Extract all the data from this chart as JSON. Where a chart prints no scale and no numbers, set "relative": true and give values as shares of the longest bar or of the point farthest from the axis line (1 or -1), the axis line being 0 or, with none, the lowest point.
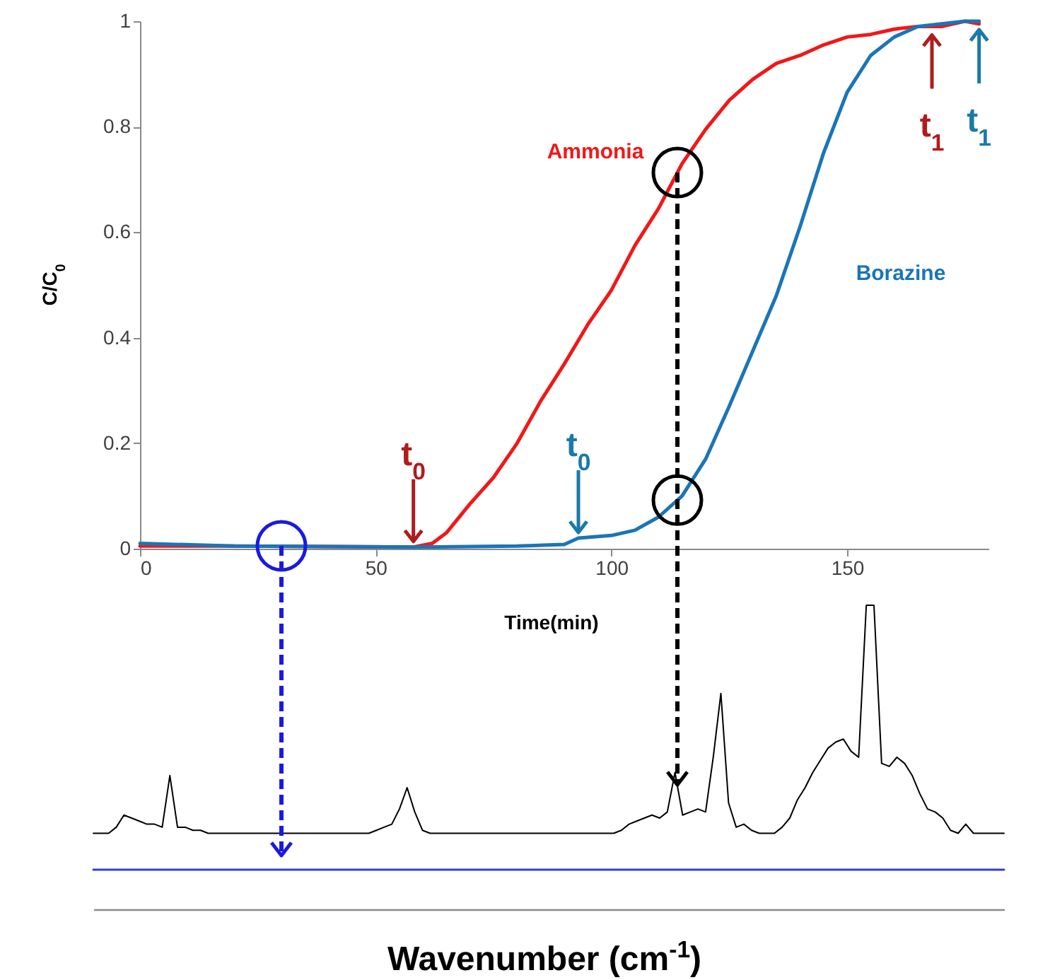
{
  "chart_data": [
    {
      "type": "line",
      "xlabel": "Time(min)",
      "ylabel": "C/C$_{0}$",
      "xlim": [
        0,
        180
      ],
      "xticks": [
        0,
        50,
        100,
        150
      ],
      "ylim": [
        0,
        1
      ],
      "yticks": [
        0,
        0.2,
        0.4,
        0.6,
        0.8,
        1
      ],
      "series": [
        {
          "name": "Ammonia",
          "color": "#f01818",
          "x": [
            0,
            20,
            40,
            58,
            62,
            65,
            70,
            75,
            80,
            85,
            90,
            95,
            100,
            105,
            110,
            115,
            120,
            125,
            130,
            135,
            140,
            145,
            150,
            155,
            160,
            165,
            170,
            175,
            178
          ],
          "values": [
            0.005,
            0.005,
            0.004,
            0.003,
            0.01,
            0.03,
            0.085,
            0.135,
            0.2,
            0.28,
            0.35,
            0.425,
            0.49,
            0.575,
            0.645,
            0.73,
            0.795,
            0.85,
            0.89,
            0.92,
            0.935,
            0.955,
            0.97,
            0.975,
            0.985,
            0.99,
            0.99,
            1,
            0.995
          ]
        },
        {
          "name": "Borazine",
          "color": "#1a75b8",
          "x": [
            0,
            20,
            40,
            60,
            80,
            90,
            93,
            100,
            105,
            110,
            115,
            120,
            125,
            130,
            135,
            140,
            145,
            150,
            155,
            160,
            165,
            170,
            175,
            178
          ],
          "values": [
            0.01,
            0.005,
            0.004,
            0.003,
            0.005,
            0.008,
            0.02,
            0.025,
            0.035,
            0.06,
            0.1,
            0.17,
            0.27,
            0.375,
            0.48,
            0.61,
            0.75,
            0.865,
            0.935,
            0.97,
            0.99,
            0.995,
            1,
            1
          ]
        }
      ],
      "annotations": [
        {
          "text": "t$_{0}$",
          "x": 58,
          "y": 0.003
        },
        {
          "text": "t$_{0}$",
          "x": 93,
          "y": 0.02
        },
        {
          "text": "t$_{1}$",
          "x": 168,
          "y": 0.99
        },
        {
          "text": "t$_{1}$",
          "x": 178,
          "y": 1
        }
      ],
      "ref_lines": [
        {
          "axis": "x",
          "value": 114,
          "color": "#000000",
          "line_style": "dashed"
        }
      ]
    },
    {
      "type": "line",
      "relative": true,
      "tick_labels": false,
      "xlabel": "Wavenumber (cm$^{-1}$)",
      "categories": [
        null,
        null,
        null,
        null,
        null,
        null,
        null,
        null,
        null,
        null,
        null,
        null,
        null,
        null,
        null,
        null,
        null,
        null,
        null,
        null,
        null,
        null,
        null,
        null,
        null,
        null,
        null,
        null,
        null,
        null,
        null,
        null,
        null,
        null,
        null,
        null,
        null,
        null,
        null,
        null,
        null,
        null,
        null,
        null,
        null,
        null,
        null,
        null,
        null,
        null,
        null,
        null,
        null,
        null,
        null,
        null,
        null,
        null,
        null,
        null,
        null,
        null,
        null,
        null,
        null,
        null,
        null,
        null,
        null,
        null,
        null,
        null,
        null,
        null,
        null,
        null,
        null,
        null,
        null,
        null,
        null,
        null,
        null,
        null,
        null,
        null,
        null,
        null,
        null,
        null,
        null,
        null,
        null,
        null,
        null,
        null,
        null,
        null,
        null,
        null,
        null,
        null,
        null,
        null,
        null,
        null,
        null,
        null,
        null,
        null,
        null,
        null,
        null,
        null,
        null,
        null,
        null,
        null,
        null,
        null
      ],
      "series": [
        {
          "color": "#000000",
          "values": [
            0.25,
            0.25,
            0.25,
            0.27,
            0.31,
            0.3,
            0.29,
            0.28,
            0.28,
            0.27,
            0.44,
            0.27,
            0.27,
            0.26,
            0.26,
            0.25,
            0.25,
            0.25,
            0.25,
            0.25,
            0.25,
            0.25,
            0.25,
            0.25,
            0.25,
            0.25,
            0.25,
            0.25,
            0.25,
            0.25,
            0.25,
            0.25,
            0.25,
            0.25,
            0.25,
            0.25,
            0.25,
            0.26,
            0.27,
            0.28,
            0.33,
            0.4,
            0.32,
            0.26,
            0.25,
            0.25,
            0.25,
            0.25,
            0.25,
            0.25,
            0.25,
            0.25,
            0.25,
            0.25,
            0.25,
            0.25,
            0.25,
            0.25,
            0.25,
            0.25,
            0.25,
            0.25,
            0.25,
            0.25,
            0.25,
            0.25,
            0.25,
            0.25,
            0.25,
            0.26,
            0.28,
            0.29,
            0.3,
            0.31,
            0.3,
            0.32,
            0.45,
            0.31,
            0.32,
            0.33,
            0.32,
            0.5,
            0.71,
            0.35,
            0.27,
            0.28,
            0.26,
            0.25,
            0.25,
            0.25,
            0.27,
            0.3,
            0.36,
            0.4,
            0.45,
            0.49,
            0.53,
            0.55,
            0.56,
            0.52,
            0.5,
            1,
            1,
            0.48,
            0.47,
            0.5,
            0.48,
            0.44,
            0.38,
            0.33,
            0.32,
            0.3,
            0.26,
            0.25,
            0.28,
            0.25,
            0.25,
            0.25,
            0.25,
            0.25
          ]
        },
        {
          "color": "#3040d0",
          "values": [
            0.13,
            0.13,
            0.13,
            0.13,
            0.13,
            0.13,
            0.13,
            0.13,
            0.13,
            0.13,
            0.13,
            0.13,
            0.13,
            0.13,
            0.13,
            0.13,
            0.13,
            0.13,
            0.13,
            0.13,
            0.13,
            0.13,
            0.13,
            0.13,
            0.13,
            0.13,
            0.13,
            0.13,
            0.13,
            0.13,
            0.13,
            0.13,
            0.13,
            0.13,
            0.13,
            0.13,
            0.13,
            0.13,
            0.13,
            0.13,
            0.13,
            0.13,
            0.13,
            0.13,
            0.13,
            0.13,
            0.13,
            0.13,
            0.13,
            0.13,
            0.13,
            0.13,
            0.13,
            0.13,
            0.13,
            0.13,
            0.13,
            0.13,
            0.13,
            0.13,
            0.13,
            0.13,
            0.13,
            0.13,
            0.13,
            0.13,
            0.13,
            0.13,
            0.13,
            0.13,
            0.13,
            0.13,
            0.13,
            0.13,
            0.13,
            0.13,
            0.13,
            0.13,
            0.13,
            0.13,
            0.13,
            0.13,
            0.13,
            0.13,
            0.13,
            0.13,
            0.13,
            0.13,
            0.13,
            0.13,
            0.13,
            0.13,
            0.13,
            0.13,
            0.13,
            0.13,
            0.13,
            0.13,
            0.13,
            0.13,
            0.13,
            0.13,
            0.13,
            0.13,
            0.13,
            0.13,
            0.13,
            0.13,
            0.13,
            0.13,
            0.13,
            0.13,
            0.13,
            0.13,
            0.13,
            0.13,
            0.13,
            0.13,
            0.13,
            0.13
          ]
        }
      ]
    }
  ]
}
